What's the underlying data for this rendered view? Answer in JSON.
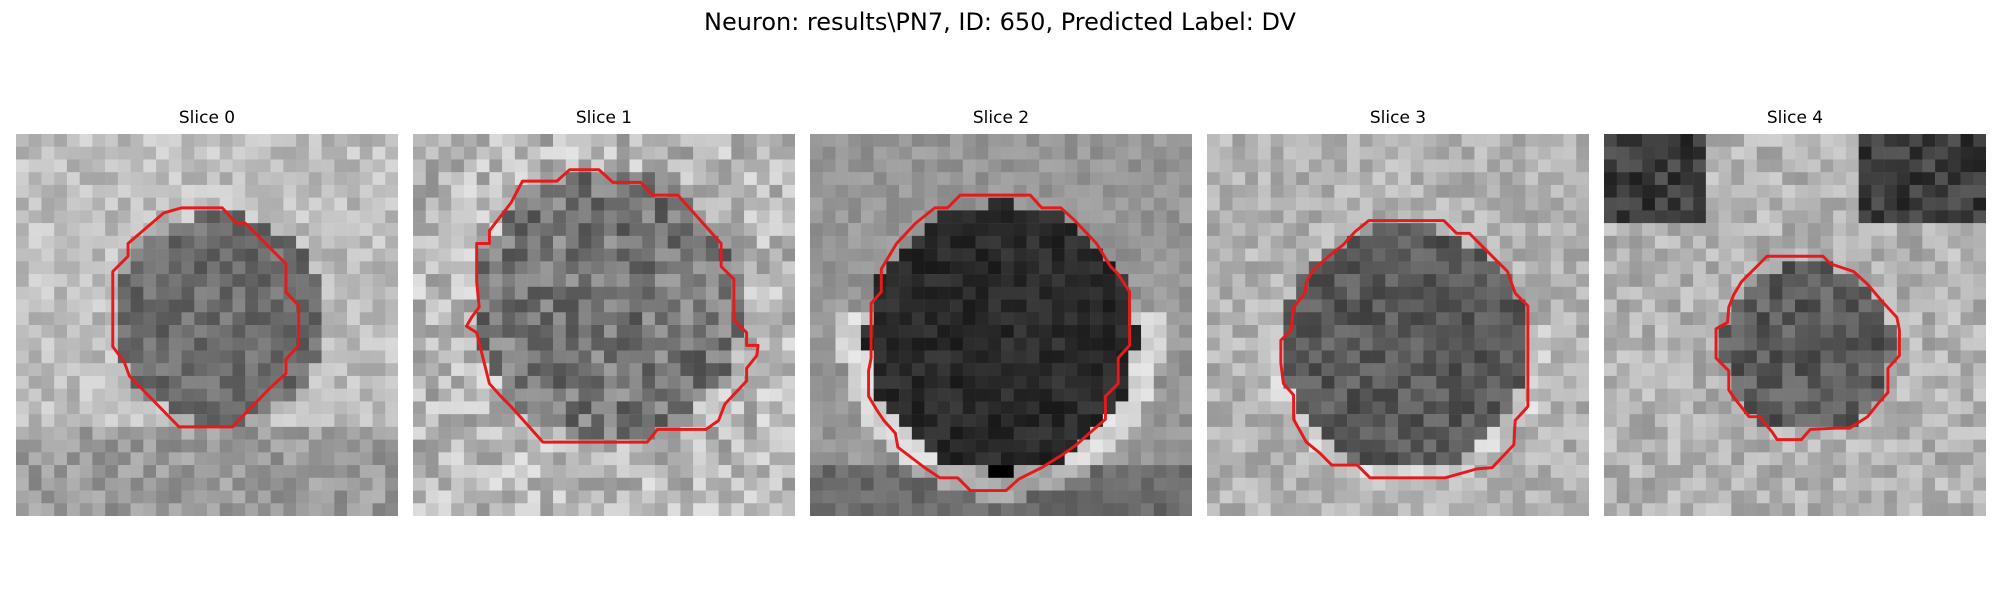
{
  "figure": {
    "title": "Neuron: results\\PN7, ID: 650, Predicted Label: DV"
  },
  "contour_color": "#e41a1c",
  "panels": [
    {
      "title": "Slice 0"
    },
    {
      "title": "Slice 1"
    },
    {
      "title": "Slice 2"
    },
    {
      "title": "Slice 3"
    },
    {
      "title": "Slice 4"
    }
  ]
}
